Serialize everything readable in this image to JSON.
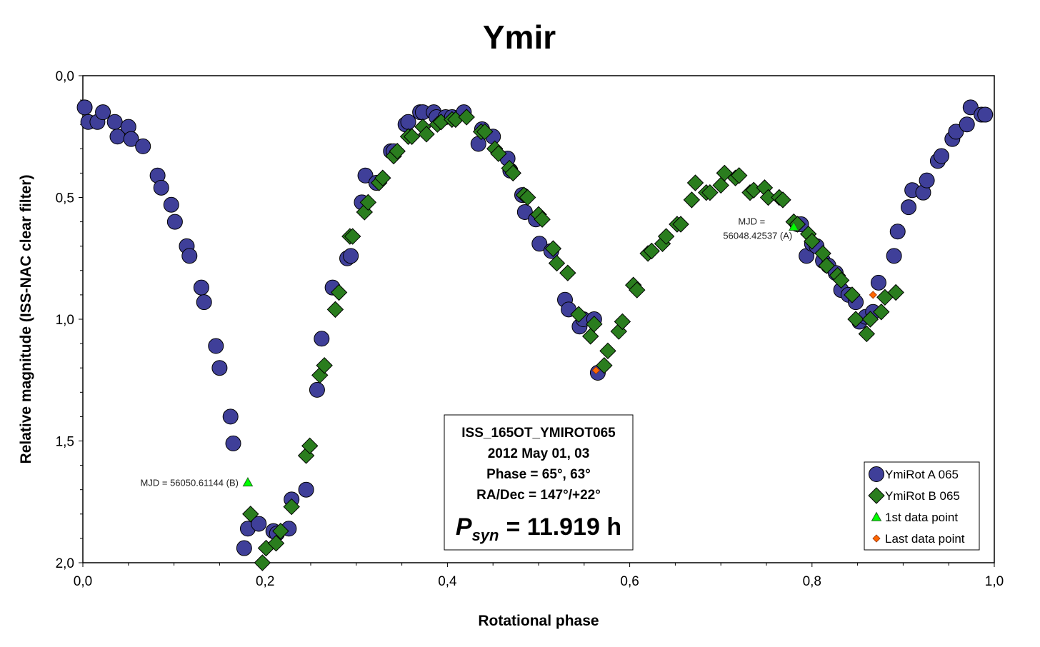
{
  "chart_data": {
    "type": "scatter",
    "title": "Ymir",
    "xlabel": "Rotational phase",
    "ylabel": "Relative magnitude (ISS-NAC clear filter)",
    "xlim": [
      0,
      1
    ],
    "ylim": [
      0,
      2
    ],
    "y_inverted": true,
    "x_ticks": [
      "0,0",
      "0,2",
      "0,4",
      "0,6",
      "0,8",
      "1,0"
    ],
    "y_ticks": [
      "0,0",
      "0,5",
      "1,0",
      "1,5",
      "2,0"
    ],
    "grid": false,
    "legend_position": "bottom-right",
    "series": [
      {
        "name": "YmiRot A 065",
        "marker": "circle",
        "color": "#3f3f99",
        "points": [
          [
            0.002,
            0.13
          ],
          [
            0.006,
            0.19
          ],
          [
            0.016,
            0.19
          ],
          [
            0.022,
            0.15
          ],
          [
            0.035,
            0.19
          ],
          [
            0.038,
            0.25
          ],
          [
            0.05,
            0.21
          ],
          [
            0.053,
            0.26
          ],
          [
            0.066,
            0.29
          ],
          [
            0.082,
            0.41
          ],
          [
            0.086,
            0.46
          ],
          [
            0.097,
            0.53
          ],
          [
            0.101,
            0.6
          ],
          [
            0.114,
            0.7
          ],
          [
            0.117,
            0.74
          ],
          [
            0.13,
            0.87
          ],
          [
            0.133,
            0.93
          ],
          [
            0.146,
            1.11
          ],
          [
            0.15,
            1.2
          ],
          [
            0.162,
            1.4
          ],
          [
            0.165,
            1.51
          ],
          [
            0.177,
            1.94
          ],
          [
            0.181,
            1.86
          ],
          [
            0.193,
            1.84
          ],
          [
            0.209,
            1.87
          ],
          [
            0.213,
            1.88
          ],
          [
            0.226,
            1.86
          ],
          [
            0.229,
            1.74
          ],
          [
            0.245,
            1.7
          ],
          [
            0.257,
            1.29
          ],
          [
            0.262,
            1.08
          ],
          [
            0.274,
            0.87
          ],
          [
            0.29,
            0.75
          ],
          [
            0.294,
            0.74
          ],
          [
            0.306,
            0.52
          ],
          [
            0.31,
            0.41
          ],
          [
            0.322,
            0.44
          ],
          [
            0.338,
            0.31
          ],
          [
            0.341,
            0.31
          ],
          [
            0.354,
            0.2
          ],
          [
            0.357,
            0.19
          ],
          [
            0.37,
            0.15
          ],
          [
            0.373,
            0.15
          ],
          [
            0.385,
            0.15
          ],
          [
            0.388,
            0.17
          ],
          [
            0.398,
            0.17
          ],
          [
            0.405,
            0.17
          ],
          [
            0.418,
            0.15
          ],
          [
            0.434,
            0.28
          ],
          [
            0.438,
            0.22
          ],
          [
            0.45,
            0.25
          ],
          [
            0.466,
            0.34
          ],
          [
            0.469,
            0.39
          ],
          [
            0.482,
            0.49
          ],
          [
            0.485,
            0.56
          ],
          [
            0.497,
            0.59
          ],
          [
            0.501,
            0.69
          ],
          [
            0.514,
            0.72
          ],
          [
            0.529,
            0.92
          ],
          [
            0.533,
            0.96
          ],
          [
            0.545,
            1.03
          ],
          [
            0.549,
            1.0
          ],
          [
            0.561,
            1.0
          ],
          [
            0.565,
            1.22
          ],
          [
            0.784,
            0.61
          ],
          [
            0.788,
            0.61
          ],
          [
            0.794,
            0.74
          ],
          [
            0.8,
            0.69
          ],
          [
            0.805,
            0.7
          ],
          [
            0.812,
            0.76
          ],
          [
            0.818,
            0.78
          ],
          [
            0.826,
            0.81
          ],
          [
            0.832,
            0.88
          ],
          [
            0.84,
            0.9
          ],
          [
            0.848,
            0.93
          ],
          [
            0.852,
            1.01
          ],
          [
            0.859,
            0.99
          ],
          [
            0.867,
            0.97
          ],
          [
            0.873,
            0.85
          ],
          [
            0.89,
            0.74
          ],
          [
            0.894,
            0.64
          ],
          [
            0.906,
            0.54
          ],
          [
            0.91,
            0.47
          ],
          [
            0.922,
            0.48
          ],
          [
            0.926,
            0.43
          ],
          [
            0.938,
            0.35
          ],
          [
            0.942,
            0.33
          ],
          [
            0.954,
            0.26
          ],
          [
            0.958,
            0.23
          ],
          [
            0.97,
            0.2
          ],
          [
            0.974,
            0.13
          ],
          [
            0.986,
            0.16
          ],
          [
            0.99,
            0.16
          ]
        ]
      },
      {
        "name": "YmiRot B 065",
        "marker": "diamond",
        "color": "#2a7d1e",
        "points": [
          [
            0.184,
            1.8
          ],
          [
            0.197,
            2.0
          ],
          [
            0.201,
            1.94
          ],
          [
            0.212,
            1.92
          ],
          [
            0.217,
            1.87
          ],
          [
            0.229,
            1.77
          ],
          [
            0.245,
            1.56
          ],
          [
            0.249,
            1.52
          ],
          [
            0.26,
            1.23
          ],
          [
            0.265,
            1.19
          ],
          [
            0.277,
            0.96
          ],
          [
            0.281,
            0.89
          ],
          [
            0.293,
            0.66
          ],
          [
            0.296,
            0.66
          ],
          [
            0.309,
            0.56
          ],
          [
            0.313,
            0.52
          ],
          [
            0.325,
            0.44
          ],
          [
            0.329,
            0.42
          ],
          [
            0.341,
            0.33
          ],
          [
            0.345,
            0.31
          ],
          [
            0.357,
            0.25
          ],
          [
            0.361,
            0.25
          ],
          [
            0.373,
            0.21
          ],
          [
            0.377,
            0.24
          ],
          [
            0.389,
            0.2
          ],
          [
            0.393,
            0.19
          ],
          [
            0.405,
            0.18
          ],
          [
            0.409,
            0.18
          ],
          [
            0.421,
            0.17
          ],
          [
            0.437,
            0.23
          ],
          [
            0.441,
            0.23
          ],
          [
            0.452,
            0.3
          ],
          [
            0.456,
            0.32
          ],
          [
            0.468,
            0.38
          ],
          [
            0.472,
            0.4
          ],
          [
            0.484,
            0.49
          ],
          [
            0.488,
            0.5
          ],
          [
            0.5,
            0.57
          ],
          [
            0.504,
            0.59
          ],
          [
            0.516,
            0.71
          ],
          [
            0.52,
            0.77
          ],
          [
            0.532,
            0.81
          ],
          [
            0.544,
            0.98
          ],
          [
            0.557,
            1.07
          ],
          [
            0.561,
            1.02
          ],
          [
            0.572,
            1.19
          ],
          [
            0.576,
            1.13
          ],
          [
            0.588,
            1.05
          ],
          [
            0.592,
            1.01
          ],
          [
            0.604,
            0.86
          ],
          [
            0.608,
            0.88
          ],
          [
            0.62,
            0.73
          ],
          [
            0.624,
            0.72
          ],
          [
            0.636,
            0.69
          ],
          [
            0.64,
            0.66
          ],
          [
            0.652,
            0.61
          ],
          [
            0.656,
            0.61
          ],
          [
            0.668,
            0.51
          ],
          [
            0.672,
            0.44
          ],
          [
            0.684,
            0.48
          ],
          [
            0.688,
            0.48
          ],
          [
            0.7,
            0.45
          ],
          [
            0.704,
            0.4
          ],
          [
            0.716,
            0.42
          ],
          [
            0.72,
            0.41
          ],
          [
            0.732,
            0.48
          ],
          [
            0.736,
            0.47
          ],
          [
            0.748,
            0.46
          ],
          [
            0.752,
            0.5
          ],
          [
            0.764,
            0.5
          ],
          [
            0.768,
            0.51
          ],
          [
            0.78,
            0.6
          ],
          [
            0.784,
            0.61
          ],
          [
            0.796,
            0.65
          ],
          [
            0.8,
            0.68
          ],
          [
            0.812,
            0.73
          ],
          [
            0.816,
            0.78
          ],
          [
            0.828,
            0.82
          ],
          [
            0.832,
            0.84
          ],
          [
            0.844,
            0.9
          ],
          [
            0.848,
            1.0
          ],
          [
            0.86,
            1.06
          ],
          [
            0.864,
            1.0
          ],
          [
            0.876,
            0.97
          ],
          [
            0.88,
            0.91
          ],
          [
            0.892,
            0.89
          ]
        ]
      },
      {
        "name": "1st data point",
        "marker": "triangle",
        "color": "#00ff00",
        "points": [
          [
            0.181,
            1.67
          ],
          [
            0.78,
            0.62
          ]
        ]
      },
      {
        "name": "Last data point",
        "marker": "diamond-small",
        "color": "#ff6600",
        "points": [
          [
            0.563,
            1.21
          ],
          [
            0.867,
            0.9
          ]
        ]
      }
    ],
    "annotations": [
      {
        "text": "MJD = 56050.61144 (B)",
        "x": 0.181,
        "y": 1.67
      },
      {
        "text_lines": [
          "MJD =",
          "56048.42537 (A)"
        ],
        "x": 0.78,
        "y": 0.62
      }
    ],
    "info_box": {
      "lines": [
        "ISS_165OT_YMIROT065",
        "2012 May 01, 03",
        "Phase = 65°, 63°",
        "RA/Dec = 147°/+22°"
      ],
      "period_symbol": "P",
      "period_subscript": "syn",
      "period_value": "= 11.919 h"
    }
  }
}
